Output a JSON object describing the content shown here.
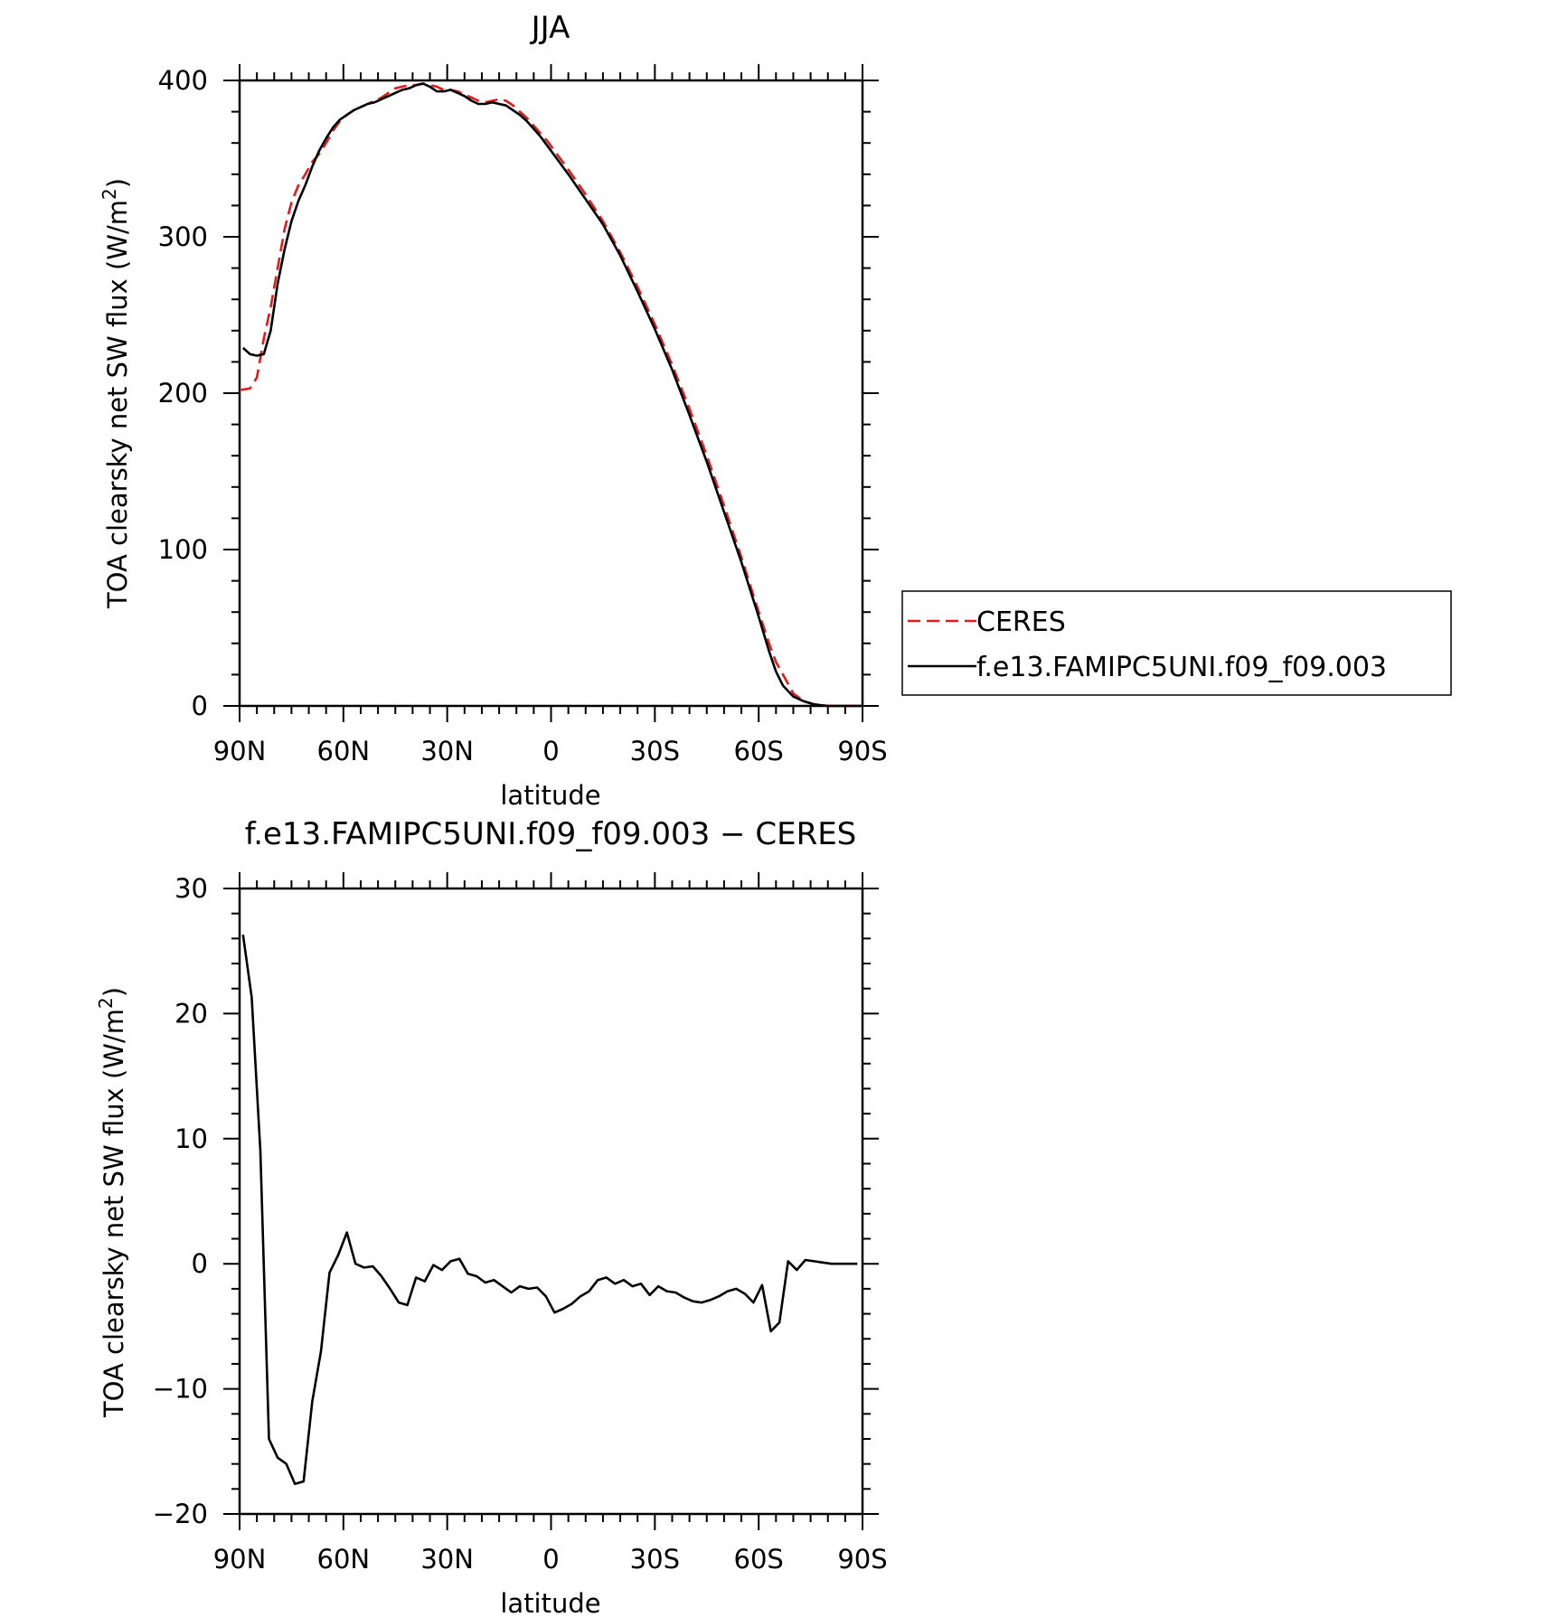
{
  "chart_data": [
    {
      "type": "line",
      "title": "JJA",
      "xlabel": "latitude",
      "ylabel": "TOA clearsky net SW flux (W/m²)",
      "ylim": [
        0,
        400
      ],
      "xlim": [
        90,
        -90
      ],
      "x_ticks": [
        {
          "value": 90,
          "label": "90N"
        },
        {
          "value": 60,
          "label": "60N"
        },
        {
          "value": 30,
          "label": "30N"
        },
        {
          "value": 0,
          "label": "0"
        },
        {
          "value": -30,
          "label": "30S"
        },
        {
          "value": -60,
          "label": "60S"
        },
        {
          "value": -90,
          "label": "90S"
        }
      ],
      "y_ticks": [
        {
          "value": 0,
          "label": "0"
        },
        {
          "value": 100,
          "label": "100"
        },
        {
          "value": 200,
          "label": "200"
        },
        {
          "value": 300,
          "label": "300"
        },
        {
          "value": 400,
          "label": "400"
        }
      ],
      "grid": false,
      "legend_position": "outside-right",
      "series": [
        {
          "name": "CERES",
          "color": "#e31a1c",
          "dash": "dashed",
          "points": [
            [
              90,
              202
            ],
            [
              87,
              203
            ],
            [
              85,
              210
            ],
            [
              83,
              235
            ],
            [
              81,
              255
            ],
            [
              79,
              280
            ],
            [
              77,
              305
            ],
            [
              75,
              322
            ],
            [
              73,
              333
            ],
            [
              71,
              340
            ],
            [
              69,
              348
            ],
            [
              67,
              353
            ],
            [
              65,
              360
            ],
            [
              63,
              368
            ],
            [
              61,
              374
            ],
            [
              59,
              378
            ],
            [
              57,
              381
            ],
            [
              55,
              383
            ],
            [
              53,
              385
            ],
            [
              51,
              387
            ],
            [
              49,
              389
            ],
            [
              47,
              392
            ],
            [
              45,
              395
            ],
            [
              43,
              396
            ],
            [
              41,
              397
            ],
            [
              39,
              397
            ],
            [
              37,
              398
            ],
            [
              35,
              397
            ],
            [
              33,
              396
            ],
            [
              31,
              394
            ],
            [
              29,
              394
            ],
            [
              27,
              393
            ],
            [
              25,
              391
            ],
            [
              23,
              389
            ],
            [
              21,
              387
            ],
            [
              19,
              386
            ],
            [
              17,
              387
            ],
            [
              15,
              388
            ],
            [
              13,
              387
            ],
            [
              11,
              384
            ],
            [
              9,
              380
            ],
            [
              7,
              376
            ],
            [
              5,
              371
            ],
            [
              3,
              366
            ],
            [
              1,
              361
            ],
            [
              -1,
              355
            ],
            [
              -5,
              343
            ],
            [
              -10,
              327
            ],
            [
              -15,
              310
            ],
            [
              -20,
              290
            ],
            [
              -25,
              268
            ],
            [
              -30,
              244
            ],
            [
              -35,
              218
            ],
            [
              -40,
              190
            ],
            [
              -45,
              160
            ],
            [
              -50,
              128
            ],
            [
              -55,
              95
            ],
            [
              -60,
              60
            ],
            [
              -63,
              40
            ],
            [
              -65,
              28
            ],
            [
              -67,
              20
            ],
            [
              -70,
              8
            ],
            [
              -73,
              3
            ],
            [
              -76,
              1
            ],
            [
              -80,
              0
            ],
            [
              -85,
              0
            ],
            [
              -90,
              0
            ]
          ]
        },
        {
          "name": "f.e13.FAMIPC5UNI.f09_f09.003",
          "color": "#000000",
          "dash": "solid",
          "points": [
            [
              89,
              229
            ],
            [
              87,
              225
            ],
            [
              85,
              224
            ],
            [
              83,
              225
            ],
            [
              81,
              240
            ],
            [
              79,
              270
            ],
            [
              77,
              292
            ],
            [
              75,
              310
            ],
            [
              73,
              323
            ],
            [
              71,
              333
            ],
            [
              69,
              345
            ],
            [
              67,
              355
            ],
            [
              65,
              363
            ],
            [
              63,
              370
            ],
            [
              61,
              375
            ],
            [
              59,
              378
            ],
            [
              57,
              381
            ],
            [
              55,
              383
            ],
            [
              53,
              385
            ],
            [
              51,
              386
            ],
            [
              49,
              388
            ],
            [
              47,
              390
            ],
            [
              45,
              392
            ],
            [
              43,
              394
            ],
            [
              41,
              395
            ],
            [
              39,
              397
            ],
            [
              37,
              398
            ],
            [
              35,
              396
            ],
            [
              33,
              393
            ],
            [
              31,
              393
            ],
            [
              29,
              394
            ],
            [
              27,
              392
            ],
            [
              25,
              390
            ],
            [
              23,
              387
            ],
            [
              21,
              385
            ],
            [
              19,
              385
            ],
            [
              17,
              386
            ],
            [
              15,
              385
            ],
            [
              13,
              384
            ],
            [
              11,
              381
            ],
            [
              9,
              378
            ],
            [
              7,
              374
            ],
            [
              5,
              369
            ],
            [
              3,
              364
            ],
            [
              1,
              358
            ],
            [
              -1,
              352
            ],
            [
              -5,
              340
            ],
            [
              -10,
              324
            ],
            [
              -15,
              308
            ],
            [
              -20,
              288
            ],
            [
              -25,
              265
            ],
            [
              -30,
              241
            ],
            [
              -35,
              215
            ],
            [
              -40,
              186
            ],
            [
              -45,
              156
            ],
            [
              -50,
              124
            ],
            [
              -55,
              92
            ],
            [
              -60,
              57
            ],
            [
              -63,
              35
            ],
            [
              -65,
              22
            ],
            [
              -67,
              13
            ],
            [
              -70,
              6
            ],
            [
              -73,
              3
            ],
            [
              -76,
              1
            ],
            [
              -80,
              0
            ],
            [
              -85,
              0
            ],
            [
              -90,
              0
            ]
          ]
        }
      ]
    },
    {
      "type": "line",
      "title": "f.e13.FAMIPC5UNI.f09_f09.003 − CERES",
      "xlabel": "latitude",
      "ylabel": "TOA clearsky net SW flux (W/m²)",
      "ylim": [
        -20,
        30
      ],
      "xlim": [
        90,
        -90
      ],
      "x_ticks": [
        {
          "value": 90,
          "label": "90N"
        },
        {
          "value": 60,
          "label": "60N"
        },
        {
          "value": 30,
          "label": "30N"
        },
        {
          "value": 0,
          "label": "0"
        },
        {
          "value": -30,
          "label": "30S"
        },
        {
          "value": -60,
          "label": "60S"
        },
        {
          "value": -90,
          "label": "90S"
        }
      ],
      "y_ticks": [
        {
          "value": -20,
          "label": "−20"
        },
        {
          "value": -10,
          "label": "−10"
        },
        {
          "value": 0,
          "label": "0"
        },
        {
          "value": 10,
          "label": "10"
        },
        {
          "value": 20,
          "label": "20"
        },
        {
          "value": 30,
          "label": "30"
        }
      ],
      "grid": false,
      "series": [
        {
          "color": "#000000",
          "dash": "solid",
          "points": [
            [
              89,
              26.3
            ],
            [
              86.5,
              21.3
            ],
            [
              84,
              9
            ],
            [
              81.5,
              -14
            ],
            [
              79,
              -15.5
            ],
            [
              76.5,
              -16
            ],
            [
              74,
              -17.6
            ],
            [
              71.5,
              -17.4
            ],
            [
              69,
              -11
            ],
            [
              66.5,
              -7
            ],
            [
              64,
              -0.7
            ],
            [
              61.5,
              0.7
            ],
            [
              59,
              2.5
            ],
            [
              56.5,
              0
            ],
            [
              54,
              -0.3
            ],
            [
              51.5,
              -0.2
            ],
            [
              49,
              -1
            ],
            [
              46.5,
              -2
            ],
            [
              44,
              -3.1
            ],
            [
              41.5,
              -3.3
            ],
            [
              39,
              -1.1
            ],
            [
              36.5,
              -1.4
            ],
            [
              34,
              -0.1
            ],
            [
              31.5,
              -0.5
            ],
            [
              29,
              0.2
            ],
            [
              26.5,
              0.4
            ],
            [
              24,
              -0.8
            ],
            [
              21.5,
              -1
            ],
            [
              19,
              -1.5
            ],
            [
              16.5,
              -1.3
            ],
            [
              14,
              -1.8
            ],
            [
              11.5,
              -2.3
            ],
            [
              9,
              -1.8
            ],
            [
              6.5,
              -2
            ],
            [
              4,
              -1.9
            ],
            [
              1.5,
              -2.6
            ],
            [
              -1,
              -3.9
            ],
            [
              -3.5,
              -3.6
            ],
            [
              -6,
              -3.2
            ],
            [
              -8.5,
              -2.6
            ],
            [
              -11,
              -2.2
            ],
            [
              -13.5,
              -1.3
            ],
            [
              -16,
              -1.1
            ],
            [
              -18.5,
              -1.6
            ],
            [
              -21,
              -1.3
            ],
            [
              -23.5,
              -1.8
            ],
            [
              -26,
              -1.6
            ],
            [
              -28.5,
              -2.5
            ],
            [
              -31,
              -1.8
            ],
            [
              -33.5,
              -2.2
            ],
            [
              -36,
              -2.3
            ],
            [
              -38.5,
              -2.7
            ],
            [
              -41,
              -3
            ],
            [
              -43.5,
              -3.1
            ],
            [
              -46,
              -2.9
            ],
            [
              -48.5,
              -2.6
            ],
            [
              -51,
              -2.2
            ],
            [
              -53.5,
              -2
            ],
            [
              -56,
              -2.4
            ],
            [
              -58.5,
              -3.1
            ],
            [
              -61,
              -1.7
            ],
            [
              -63.5,
              -5.4
            ],
            [
              -66,
              -4.7
            ],
            [
              -68.5,
              0.2
            ],
            [
              -71,
              -0.5
            ],
            [
              -73.5,
              0.3
            ],
            [
              -76,
              0.2
            ],
            [
              -78.5,
              0.1
            ],
            [
              -81,
              0
            ],
            [
              -83.5,
              0
            ],
            [
              -86,
              0
            ],
            [
              -88.5,
              0
            ]
          ]
        }
      ]
    }
  ]
}
